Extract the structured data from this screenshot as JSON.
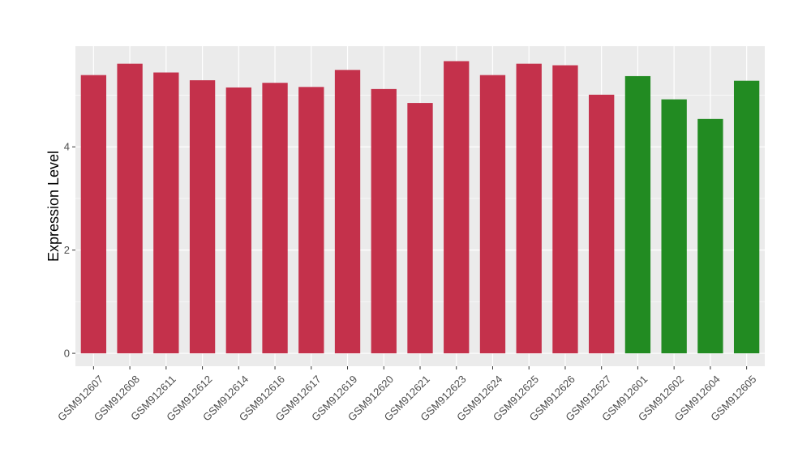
{
  "chart_data": {
    "type": "bar",
    "title": "",
    "xlabel": "",
    "ylabel": "Expression Level",
    "ylim": [
      -0.25,
      5.95
    ],
    "yticks": [
      0,
      2,
      4
    ],
    "grid": true,
    "colors": {
      "group_a": "#c4314b",
      "group_b": "#228b22",
      "panel_background": "#ebebeb",
      "grid_major": "#ffffff",
      "axis_text": "#4d4d4d",
      "tick_marks": "#333333"
    },
    "categories": [
      "GSM912607",
      "GSM912608",
      "GSM912611",
      "GSM912612",
      "GSM912614",
      "GSM912616",
      "GSM912617",
      "GSM912619",
      "GSM912620",
      "GSM912621",
      "GSM912623",
      "GSM912624",
      "GSM912625",
      "GSM912626",
      "GSM912627",
      "GSM912601",
      "GSM912602",
      "GSM912604",
      "GSM912605"
    ],
    "values": [
      5.39,
      5.61,
      5.44,
      5.29,
      5.15,
      5.24,
      5.16,
      5.49,
      5.12,
      4.85,
      5.66,
      5.39,
      5.61,
      5.58,
      5.01,
      5.37,
      4.92,
      4.54,
      5.28
    ],
    "bar_groups": [
      "group_a",
      "group_a",
      "group_a",
      "group_a",
      "group_a",
      "group_a",
      "group_a",
      "group_a",
      "group_a",
      "group_a",
      "group_a",
      "group_a",
      "group_a",
      "group_a",
      "group_a",
      "group_b",
      "group_b",
      "group_b",
      "group_b"
    ]
  }
}
